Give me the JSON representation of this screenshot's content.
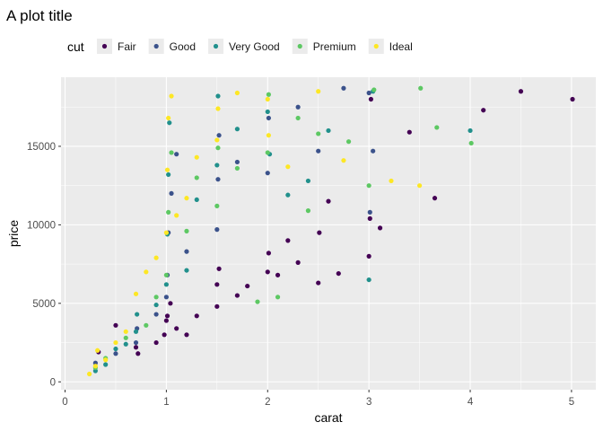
{
  "chart_data": {
    "type": "scatter",
    "title": "A plot title",
    "xlabel": "carat",
    "ylabel": "price",
    "xlim": [
      -0.04,
      5.24
    ],
    "ylim": [
      -500,
      19400
    ],
    "x_ticks": [
      0,
      1,
      2,
      3,
      4,
      5
    ],
    "y_ticks": [
      0,
      5000,
      10000,
      15000
    ],
    "grid": true,
    "legend": {
      "title": "cut",
      "position": "top",
      "entries": [
        "Fair",
        "Good",
        "Very Good",
        "Premium",
        "Ideal"
      ]
    },
    "colors": {
      "Fair": "#440154",
      "Good": "#3b528b",
      "Very Good": "#21908c",
      "Premium": "#5dc863",
      "Ideal": "#fde725",
      "panel_background": "#ebebeb",
      "grid": "#ffffff"
    },
    "series": [
      {
        "name": "Fair",
        "points": [
          [
            0.33,
            1900
          ],
          [
            0.5,
            3600
          ],
          [
            0.7,
            2200
          ],
          [
            0.72,
            1800
          ],
          [
            0.9,
            2500
          ],
          [
            0.98,
            3000
          ],
          [
            1.0,
            3900
          ],
          [
            1.01,
            4200
          ],
          [
            1.04,
            5000
          ],
          [
            1.1,
            3400
          ],
          [
            1.2,
            3000
          ],
          [
            1.3,
            4200
          ],
          [
            1.5,
            4800
          ],
          [
            1.5,
            6200
          ],
          [
            1.52,
            7200
          ],
          [
            1.7,
            5500
          ],
          [
            1.8,
            6100
          ],
          [
            2.0,
            7000
          ],
          [
            2.01,
            8200
          ],
          [
            2.1,
            6800
          ],
          [
            2.2,
            9000
          ],
          [
            2.3,
            7600
          ],
          [
            2.5,
            6300
          ],
          [
            2.51,
            9500
          ],
          [
            2.6,
            11500
          ],
          [
            2.7,
            6900
          ],
          [
            3.0,
            8000
          ],
          [
            3.01,
            10400
          ],
          [
            3.02,
            18000
          ],
          [
            3.11,
            9800
          ],
          [
            3.4,
            15900
          ],
          [
            3.65,
            11700
          ],
          [
            4.13,
            17300
          ],
          [
            4.5,
            18500
          ],
          [
            5.01,
            18000
          ]
        ]
      },
      {
        "name": "Good",
        "points": [
          [
            0.3,
            1200
          ],
          [
            0.5,
            1800
          ],
          [
            0.7,
            2500
          ],
          [
            0.71,
            3400
          ],
          [
            0.9,
            4300
          ],
          [
            1.0,
            5400
          ],
          [
            1.01,
            6800
          ],
          [
            1.02,
            9500
          ],
          [
            1.05,
            12000
          ],
          [
            1.1,
            14500
          ],
          [
            1.2,
            8300
          ],
          [
            1.5,
            9700
          ],
          [
            1.51,
            12900
          ],
          [
            1.52,
            15700
          ],
          [
            1.7,
            14000
          ],
          [
            2.0,
            13300
          ],
          [
            2.01,
            16800
          ],
          [
            2.3,
            17500
          ],
          [
            2.5,
            14700
          ],
          [
            2.75,
            18700
          ],
          [
            3.0,
            18400
          ],
          [
            3.01,
            10800
          ],
          [
            3.04,
            14700
          ]
        ]
      },
      {
        "name": "Very Good",
        "points": [
          [
            0.3,
            700
          ],
          [
            0.4,
            1100
          ],
          [
            0.5,
            2100
          ],
          [
            0.6,
            2400
          ],
          [
            0.7,
            3200
          ],
          [
            0.71,
            4300
          ],
          [
            0.9,
            4900
          ],
          [
            1.0,
            6200
          ],
          [
            1.01,
            9400
          ],
          [
            1.02,
            13200
          ],
          [
            1.03,
            16500
          ],
          [
            1.2,
            7100
          ],
          [
            1.3,
            11600
          ],
          [
            1.5,
            13800
          ],
          [
            1.51,
            18200
          ],
          [
            1.7,
            16100
          ],
          [
            2.0,
            17200
          ],
          [
            2.02,
            14500
          ],
          [
            2.2,
            11900
          ],
          [
            2.4,
            12800
          ],
          [
            2.6,
            16000
          ],
          [
            3.0,
            6500
          ],
          [
            3.04,
            18500
          ],
          [
            4.0,
            16000
          ]
        ]
      },
      {
        "name": "Premium",
        "points": [
          [
            0.3,
            900
          ],
          [
            0.4,
            1500
          ],
          [
            0.6,
            2800
          ],
          [
            0.8,
            3600
          ],
          [
            0.9,
            5400
          ],
          [
            1.0,
            6800
          ],
          [
            1.02,
            10800
          ],
          [
            1.05,
            14600
          ],
          [
            1.2,
            9600
          ],
          [
            1.3,
            13000
          ],
          [
            1.5,
            11200
          ],
          [
            1.51,
            14900
          ],
          [
            1.7,
            13600
          ],
          [
            1.9,
            5100
          ],
          [
            2.0,
            14600
          ],
          [
            2.01,
            18300
          ],
          [
            2.1,
            5400
          ],
          [
            2.3,
            16800
          ],
          [
            2.4,
            10900
          ],
          [
            2.5,
            15800
          ],
          [
            2.8,
            15300
          ],
          [
            3.0,
            12500
          ],
          [
            3.05,
            18600
          ],
          [
            3.51,
            18700
          ],
          [
            3.67,
            16200
          ],
          [
            4.01,
            15200
          ]
        ]
      },
      {
        "name": "Ideal",
        "points": [
          [
            0.24,
            500
          ],
          [
            0.3,
            1000
          ],
          [
            0.32,
            2000
          ],
          [
            0.4,
            1400
          ],
          [
            0.5,
            2500
          ],
          [
            0.6,
            3200
          ],
          [
            0.7,
            5600
          ],
          [
            0.8,
            7000
          ],
          [
            0.9,
            7900
          ],
          [
            1.0,
            9500
          ],
          [
            1.01,
            13500
          ],
          [
            1.02,
            16800
          ],
          [
            1.05,
            18200
          ],
          [
            1.1,
            10600
          ],
          [
            1.2,
            11700
          ],
          [
            1.3,
            14300
          ],
          [
            1.5,
            15400
          ],
          [
            1.51,
            17400
          ],
          [
            1.7,
            18400
          ],
          [
            2.0,
            18000
          ],
          [
            2.01,
            15700
          ],
          [
            2.2,
            13700
          ],
          [
            2.5,
            18500
          ],
          [
            2.75,
            14100
          ],
          [
            3.22,
            12800
          ],
          [
            3.5,
            12500
          ]
        ]
      }
    ]
  }
}
